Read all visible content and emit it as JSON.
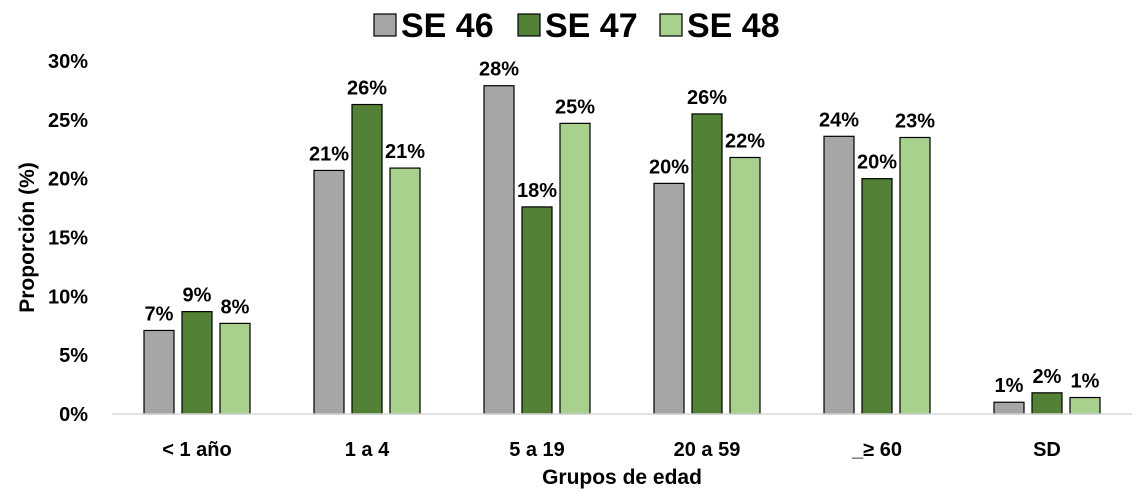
{
  "chart_data": {
    "type": "bar",
    "categories": [
      "< 1 año",
      "1 a 4",
      "5 a 19",
      "20 a 59",
      "_≥ 60",
      "SD"
    ],
    "series": [
      {
        "name": "SE 46",
        "color": "#a6a6a6",
        "values": [
          7,
          21,
          28,
          20,
          24,
          1
        ],
        "labels": [
          "7%",
          "21%",
          "28%",
          "20%",
          "24%",
          "1%"
        ]
      },
      {
        "name": "SE 47",
        "color": "#538135",
        "values": [
          9,
          26,
          18,
          26,
          20,
          2
        ],
        "labels": [
          "9%",
          "26%",
          "18%",
          "26%",
          "20%",
          "2%"
        ]
      },
      {
        "name": "SE 48",
        "color": "#a9d18e",
        "values": [
          8,
          21,
          25,
          22,
          23,
          1
        ],
        "labels": [
          "8%",
          "21%",
          "25%",
          "22%",
          "23%",
          "1%"
        ]
      }
    ],
    "bar_values_precise": [
      [
        7.1,
        20.7,
        27.9,
        19.6,
        23.6,
        1.0
      ],
      [
        8.7,
        26.3,
        17.6,
        25.5,
        20.0,
        1.8
      ],
      [
        7.7,
        20.9,
        24.7,
        21.8,
        23.5,
        1.4
      ]
    ],
    "xlabel": "Grupos de edad",
    "ylabel": "Proporción (%)",
    "ylim": [
      0,
      30
    ],
    "yticks": [
      "0%",
      "5%",
      "10%",
      "15%",
      "20%",
      "25%",
      "30%"
    ],
    "legend_position": "top",
    "grid": false
  }
}
